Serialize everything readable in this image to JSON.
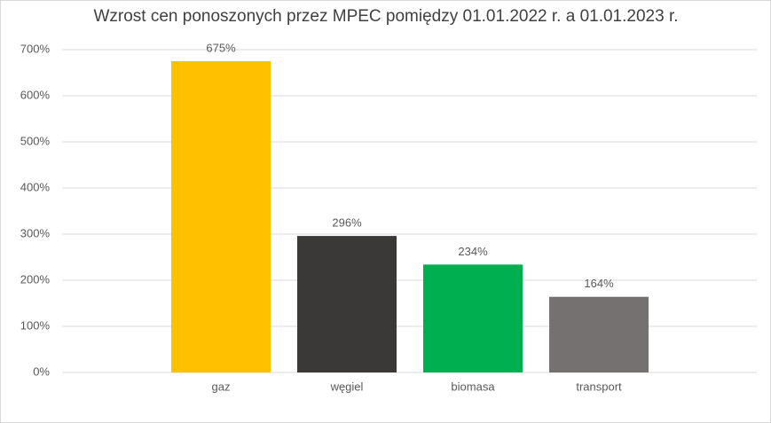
{
  "chart_data": {
    "type": "bar",
    "title": "Wzrost cen ponoszonych przez MPEC pomiędzy 01.01.2022 r. a 01.01.2023 r.",
    "categories": [
      "gaz",
      "węgiel",
      "biomasa",
      "transport"
    ],
    "values": [
      675,
      296,
      234,
      164
    ],
    "value_labels": [
      "675%",
      "296%",
      "234%",
      "164%"
    ],
    "colors": [
      "#ffc000",
      "#3b3838",
      "#00b050",
      "#767171"
    ],
    "ylim": [
      0,
      700
    ],
    "yticks": [
      {
        "value": 0,
        "label": "0%"
      },
      {
        "value": 100,
        "label": "100%"
      },
      {
        "value": 200,
        "label": "200%"
      },
      {
        "value": 300,
        "label": "300%"
      },
      {
        "value": 400,
        "label": "400%"
      },
      {
        "value": 500,
        "label": "500%"
      },
      {
        "value": 600,
        "label": "600%"
      },
      {
        "value": 700,
        "label": "700%"
      }
    ],
    "grid": true
  }
}
